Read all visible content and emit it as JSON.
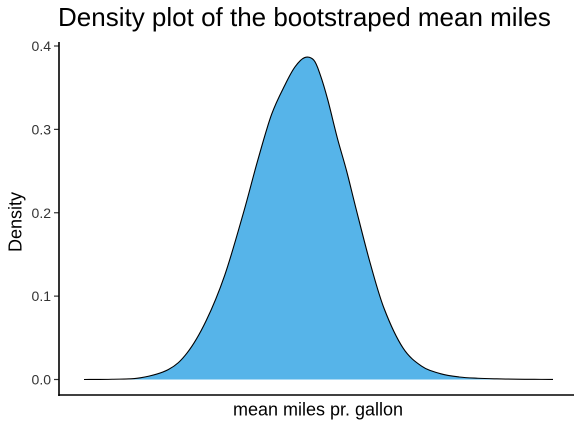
{
  "chart_data": {
    "type": "area",
    "title": "Density plot of the bootstraped mean miles",
    "xlabel": "mean miles pr. gallon",
    "ylabel": "Density",
    "ylim": [
      0,
      0.4
    ],
    "yticks": [
      "0.0",
      "0.1",
      "0.2",
      "0.3",
      "0.4"
    ],
    "xticks": [],
    "grid": false,
    "fill_color": "#56B4E9",
    "line_color": "#000000",
    "series": [
      {
        "x": [
          0,
          3,
          6,
          9,
          11,
          13,
          15,
          17,
          18.5,
          20,
          21.5,
          22.5,
          23.5,
          24.5,
          25.2,
          26,
          27,
          28,
          29,
          30.5,
          32,
          34,
          36,
          38,
          40,
          42,
          44,
          46,
          48,
          50
        ],
        "y": [
          0,
          0.0003,
          0.002,
          0.012,
          0.032,
          0.07,
          0.125,
          0.2,
          0.262,
          0.318,
          0.355,
          0.375,
          0.386,
          0.383,
          0.365,
          0.335,
          0.29,
          0.25,
          0.205,
          0.14,
          0.085,
          0.038,
          0.016,
          0.007,
          0.003,
          0.0015,
          0.0008,
          0.0004,
          0.0002,
          0.0001
        ]
      }
    ]
  }
}
